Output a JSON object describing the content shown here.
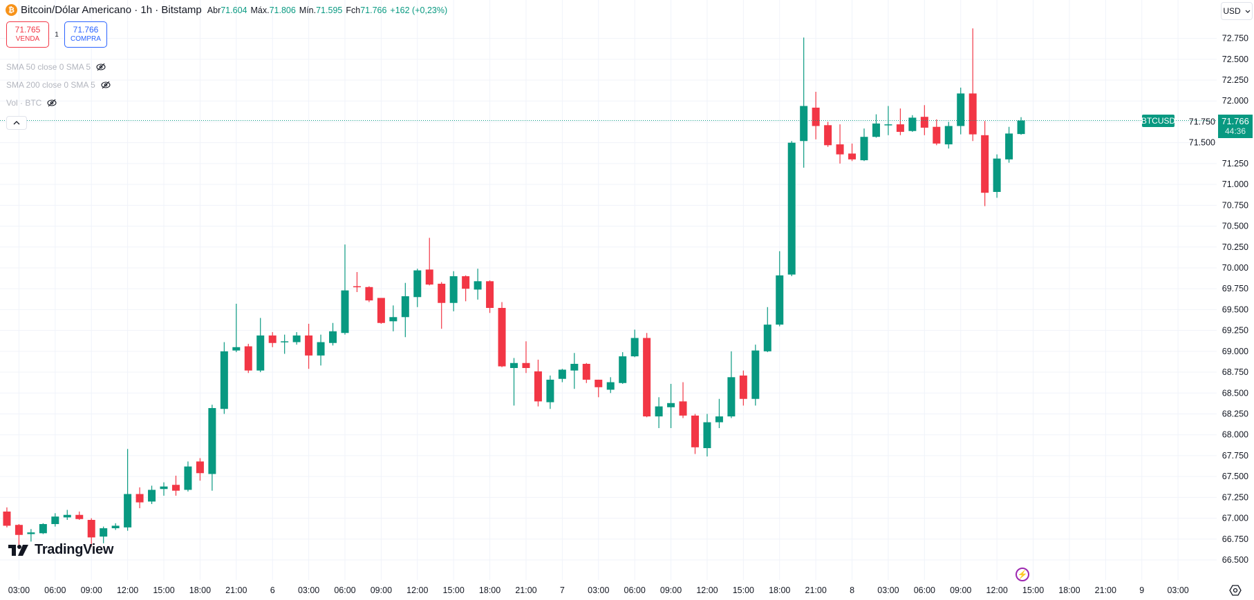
{
  "header": {
    "symbol_icon": "bitcoin-icon",
    "title": "Bitcoin/Dólar Americano · 1h · Bitstamp",
    "open_label": "Abr",
    "open_value": "71.604",
    "high_label": "Máx.",
    "high_value": "71.806",
    "low_label": "Mín.",
    "low_value": "71.595",
    "close_label": "Fch",
    "close_value": "71.766",
    "change": "+162 (+0,23%)"
  },
  "trade": {
    "sell_price": "71.765",
    "sell_label": "VENDA",
    "quantity": "1",
    "buy_price": "71.766",
    "buy_label": "COMPRA"
  },
  "indicators": [
    {
      "label": "SMA 50 close 0 SMA 5"
    },
    {
      "label": "SMA 200 close 0 SMA 5"
    },
    {
      "label": "Vol · BTC"
    }
  ],
  "currency": "USD",
  "brand": "TradingView",
  "price_tag": {
    "symbol": "BTCUSD",
    "price": "71.766",
    "countdown": "44:36"
  },
  "colors": {
    "up": "#089981",
    "down": "#f23645",
    "grid": "#f0f3fa",
    "text": "#131722"
  },
  "chart_data": {
    "type": "candlestick",
    "title": "Bitcoin/Dólar Americano · 1h · Bitstamp",
    "x_unit": "hours since day 5 00:00",
    "x_start": 2,
    "x_step": 1,
    "xlim": [
      1.43,
      102.2
    ],
    "ylim": [
      66.26,
      73.21
    ],
    "grid": true,
    "current_price": 71.766,
    "y_ticks": [
      "66.500",
      "66.750",
      "67.000",
      "67.250",
      "67.500",
      "67.750",
      "68.000",
      "68.250",
      "68.500",
      "68.750",
      "69.000",
      "69.250",
      "69.500",
      "69.750",
      "70.000",
      "70.250",
      "70.500",
      "70.750",
      "71.000",
      "71.250",
      "71.500",
      "71.750",
      "72.000",
      "72.250",
      "72.500",
      "72.750"
    ],
    "x_ticks": [
      {
        "h": 3,
        "label": "03:00"
      },
      {
        "h": 6,
        "label": "06:00"
      },
      {
        "h": 9,
        "label": "09:00"
      },
      {
        "h": 12,
        "label": "12:00"
      },
      {
        "h": 15,
        "label": "15:00"
      },
      {
        "h": 18,
        "label": "18:00"
      },
      {
        "h": 21,
        "label": "21:00"
      },
      {
        "h": 24,
        "label": "6"
      },
      {
        "h": 27,
        "label": "03:00"
      },
      {
        "h": 30,
        "label": "06:00"
      },
      {
        "h": 33,
        "label": "09:00"
      },
      {
        "h": 36,
        "label": "12:00"
      },
      {
        "h": 39,
        "label": "15:00"
      },
      {
        "h": 42,
        "label": "18:00"
      },
      {
        "h": 45,
        "label": "21:00"
      },
      {
        "h": 48,
        "label": "7"
      },
      {
        "h": 51,
        "label": "03:00"
      },
      {
        "h": 54,
        "label": "06:00"
      },
      {
        "h": 57,
        "label": "09:00"
      },
      {
        "h": 60,
        "label": "12:00"
      },
      {
        "h": 63,
        "label": "15:00"
      },
      {
        "h": 66,
        "label": "18:00"
      },
      {
        "h": 69,
        "label": "21:00"
      },
      {
        "h": 72,
        "label": "8"
      },
      {
        "h": 75,
        "label": "03:00"
      },
      {
        "h": 78,
        "label": "06:00"
      },
      {
        "h": 81,
        "label": "09:00"
      },
      {
        "h": 84,
        "label": "12:00"
      },
      {
        "h": 87,
        "label": "15:00"
      },
      {
        "h": 90,
        "label": "18:00"
      },
      {
        "h": 93,
        "label": "21:00"
      },
      {
        "h": 96,
        "label": "9"
      },
      {
        "h": 99,
        "label": "03:00"
      }
    ],
    "ohlc": [
      [
        67.08,
        67.13,
        66.89,
        66.91
      ],
      [
        66.92,
        66.93,
        66.63,
        66.8
      ],
      [
        66.81,
        66.87,
        66.72,
        66.83
      ],
      [
        66.82,
        66.94,
        66.81,
        66.93
      ],
      [
        66.93,
        67.06,
        66.9,
        67.02
      ],
      [
        67.01,
        67.1,
        66.98,
        67.04
      ],
      [
        67.04,
        67.08,
        66.98,
        66.99
      ],
      [
        66.98,
        67.0,
        66.66,
        66.77
      ],
      [
        66.78,
        66.9,
        66.7,
        66.88
      ],
      [
        66.88,
        66.94,
        66.86,
        66.91
      ],
      [
        66.89,
        67.83,
        66.85,
        67.29
      ],
      [
        67.29,
        67.37,
        67.12,
        67.19
      ],
      [
        67.2,
        67.39,
        67.17,
        67.34
      ],
      [
        67.35,
        67.43,
        67.27,
        67.38
      ],
      [
        67.4,
        67.51,
        67.27,
        67.33
      ],
      [
        67.34,
        67.68,
        67.32,
        67.62
      ],
      [
        67.68,
        67.72,
        67.45,
        67.54
      ],
      [
        67.53,
        68.36,
        67.33,
        68.32
      ],
      [
        68.31,
        69.11,
        68.25,
        69.0
      ],
      [
        69.01,
        69.57,
        68.99,
        69.05
      ],
      [
        69.06,
        69.09,
        68.74,
        68.77
      ],
      [
        68.77,
        69.4,
        68.75,
        69.19
      ],
      [
        69.19,
        69.23,
        69.05,
        69.1
      ],
      [
        69.11,
        69.2,
        68.97,
        69.12
      ],
      [
        69.11,
        69.23,
        69.08,
        69.19
      ],
      [
        69.19,
        69.33,
        68.79,
        68.95
      ],
      [
        68.95,
        69.2,
        68.83,
        69.11
      ],
      [
        69.1,
        69.34,
        69.07,
        69.24
      ],
      [
        69.22,
        70.28,
        69.2,
        69.73
      ],
      [
        69.78,
        69.95,
        69.71,
        69.77
      ],
      [
        69.77,
        69.78,
        69.59,
        69.61
      ],
      [
        69.64,
        69.64,
        69.33,
        69.34
      ],
      [
        69.36,
        69.55,
        69.24,
        69.41
      ],
      [
        69.41,
        69.82,
        69.17,
        69.66
      ],
      [
        69.65,
        69.99,
        69.53,
        69.97
      ],
      [
        69.98,
        70.36,
        69.79,
        69.8
      ],
      [
        69.81,
        69.83,
        69.27,
        69.58
      ],
      [
        69.58,
        69.96,
        69.48,
        69.9
      ],
      [
        69.9,
        69.91,
        69.6,
        69.75
      ],
      [
        69.74,
        69.99,
        69.62,
        69.84
      ],
      [
        69.84,
        69.85,
        69.46,
        69.52
      ],
      [
        69.52,
        69.59,
        68.81,
        68.82
      ],
      [
        68.8,
        68.92,
        68.35,
        68.86
      ],
      [
        68.86,
        69.12,
        68.74,
        68.8
      ],
      [
        68.76,
        68.9,
        68.34,
        68.4
      ],
      [
        68.39,
        68.71,
        68.31,
        68.66
      ],
      [
        68.67,
        68.79,
        68.63,
        68.78
      ],
      [
        68.77,
        68.98,
        68.55,
        68.85
      ],
      [
        68.85,
        68.86,
        68.62,
        68.66
      ],
      [
        68.66,
        68.66,
        68.45,
        68.57
      ],
      [
        68.54,
        68.69,
        68.5,
        68.63
      ],
      [
        68.62,
        68.99,
        68.61,
        68.94
      ],
      [
        68.94,
        69.26,
        68.93,
        69.16
      ],
      [
        69.16,
        69.22,
        68.21,
        68.22
      ],
      [
        68.22,
        68.45,
        68.08,
        68.34
      ],
      [
        68.33,
        68.61,
        68.08,
        68.38
      ],
      [
        68.4,
        68.63,
        68.2,
        68.23
      ],
      [
        68.23,
        68.25,
        67.77,
        67.85
      ],
      [
        67.84,
        68.25,
        67.74,
        68.15
      ],
      [
        68.15,
        68.43,
        68.08,
        68.22
      ],
      [
        68.22,
        69.0,
        68.2,
        68.69
      ],
      [
        68.71,
        68.77,
        68.35,
        68.43
      ],
      [
        68.43,
        69.08,
        68.35,
        69.01
      ],
      [
        69.0,
        69.53,
        68.99,
        69.32
      ],
      [
        69.32,
        70.2,
        69.3,
        69.91
      ],
      [
        69.92,
        71.52,
        69.9,
        71.5
      ],
      [
        71.52,
        72.76,
        71.2,
        71.94
      ],
      [
        71.92,
        72.11,
        71.54,
        71.7
      ],
      [
        71.71,
        71.75,
        71.45,
        71.47
      ],
      [
        71.48,
        71.72,
        71.25,
        71.36
      ],
      [
        71.37,
        71.49,
        71.28,
        71.3
      ],
      [
        71.29,
        71.67,
        71.28,
        71.57
      ],
      [
        71.57,
        71.84,
        71.56,
        71.73
      ],
      [
        71.72,
        71.94,
        71.59,
        71.72
      ],
      [
        71.72,
        71.91,
        71.59,
        71.63
      ],
      [
        71.64,
        71.83,
        71.63,
        71.8
      ],
      [
        71.81,
        71.95,
        71.59,
        71.68
      ],
      [
        71.69,
        71.78,
        71.47,
        71.49
      ],
      [
        71.48,
        71.75,
        71.43,
        71.7
      ],
      [
        71.7,
        72.16,
        71.6,
        72.09
      ],
      [
        72.09,
        72.87,
        71.52,
        71.6
      ],
      [
        71.59,
        71.76,
        70.74,
        70.9
      ],
      [
        70.91,
        71.36,
        70.84,
        71.31
      ],
      [
        71.3,
        71.69,
        71.26,
        71.61
      ],
      [
        71.604,
        71.806,
        71.595,
        71.766
      ]
    ]
  }
}
